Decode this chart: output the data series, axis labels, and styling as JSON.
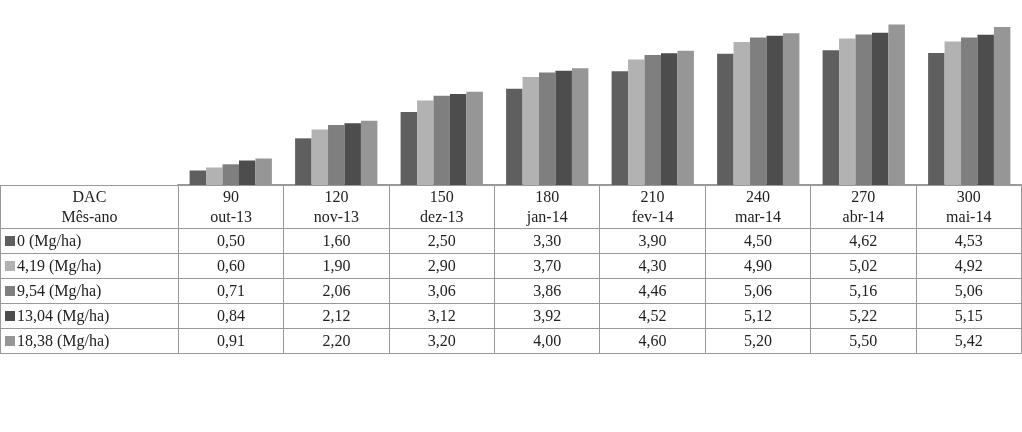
{
  "chart_data": {
    "type": "bar",
    "xlabel": "DAC\nMês-ano",
    "categories": [
      "90\nout-13",
      "120\nnov-13",
      "150\ndez-13",
      "180\njan-14",
      "210\nfev-14",
      "240\nmar-14",
      "270\nabr-14",
      "300\nmai-14"
    ],
    "series": [
      {
        "name": "0 (Mg/ha)",
        "color": "#5f5f5f",
        "values": [
          0.5,
          1.6,
          2.5,
          3.3,
          3.9,
          4.5,
          4.62,
          4.53
        ],
        "value_labels": [
          "0,50",
          "1,60",
          "2,50",
          "3,30",
          "3,90",
          "4,50",
          "4,62",
          "4,53"
        ]
      },
      {
        "name": "4,19 (Mg/ha)",
        "color": "#b2b2b2",
        "values": [
          0.6,
          1.9,
          2.9,
          3.7,
          4.3,
          4.9,
          5.02,
          4.92
        ],
        "value_labels": [
          "0,60",
          "1,90",
          "2,90",
          "3,70",
          "4,30",
          "4,90",
          "5,02",
          "4,92"
        ]
      },
      {
        "name": "9,54 (Mg/ha)",
        "color": "#7f7f7f",
        "values": [
          0.71,
          2.06,
          3.06,
          3.86,
          4.46,
          5.06,
          5.16,
          5.06
        ],
        "value_labels": [
          "0,71",
          "2,06",
          "3,06",
          "3,86",
          "4,46",
          "5,06",
          "5,16",
          "5,06"
        ]
      },
      {
        "name": "13,04 (Mg/ha)",
        "color": "#4d4d4d",
        "values": [
          0.84,
          2.12,
          3.12,
          3.92,
          4.52,
          5.12,
          5.22,
          5.15
        ],
        "value_labels": [
          "0,84",
          "2,12",
          "3,12",
          "3,92",
          "4,52",
          "5,12",
          "5,22",
          "5,15"
        ]
      },
      {
        "name": "18,38 (Mg/ha)",
        "color": "#969696",
        "values": [
          0.91,
          2.2,
          3.2,
          4.0,
          4.6,
          5.2,
          5.5,
          5.42
        ],
        "value_labels": [
          "0,91",
          "2,20",
          "3,20",
          "4,00",
          "4,60",
          "5,20",
          "5,50",
          "5,42"
        ]
      }
    ],
    "legend": "bottom"
  }
}
